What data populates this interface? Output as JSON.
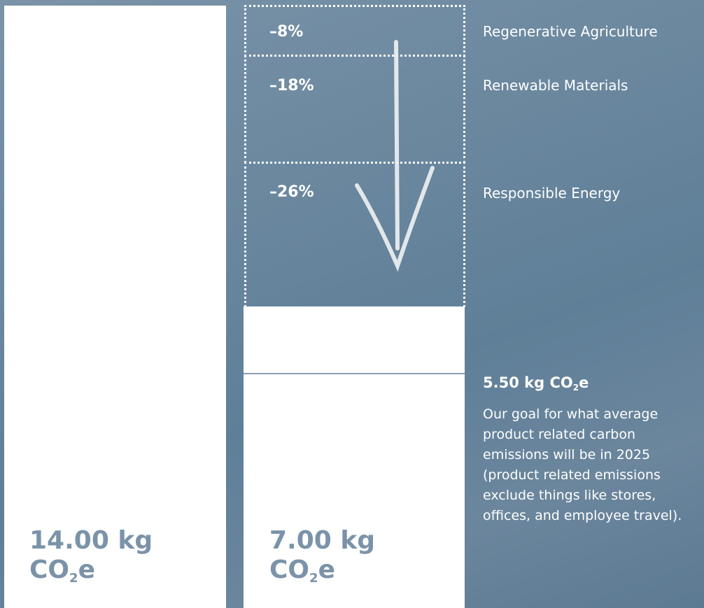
{
  "bars": [
    {
      "amount": "14.00 kg",
      "unit": {
        "base": "CO",
        "sub": "2",
        "tail": "e"
      }
    },
    {
      "amount": "7.00 kg",
      "unit": {
        "base": "CO",
        "sub": "2",
        "tail": "e"
      }
    }
  ],
  "reductions": [
    {
      "percent": "–8%",
      "label": "Regenerative Agriculture"
    },
    {
      "percent": "–18%",
      "label": "Renewable Materials"
    },
    {
      "percent": "–26%",
      "label": "Responsible Energy"
    }
  ],
  "goal": {
    "amount": "5.50 kg",
    "unit": {
      "base": "CO",
      "sub": "2",
      "tail": "e"
    },
    "description": "Our goal for what average product related carbon emissions will be in 2025 (product related emissions exclude things like stores, offices, and employee travel)."
  }
}
